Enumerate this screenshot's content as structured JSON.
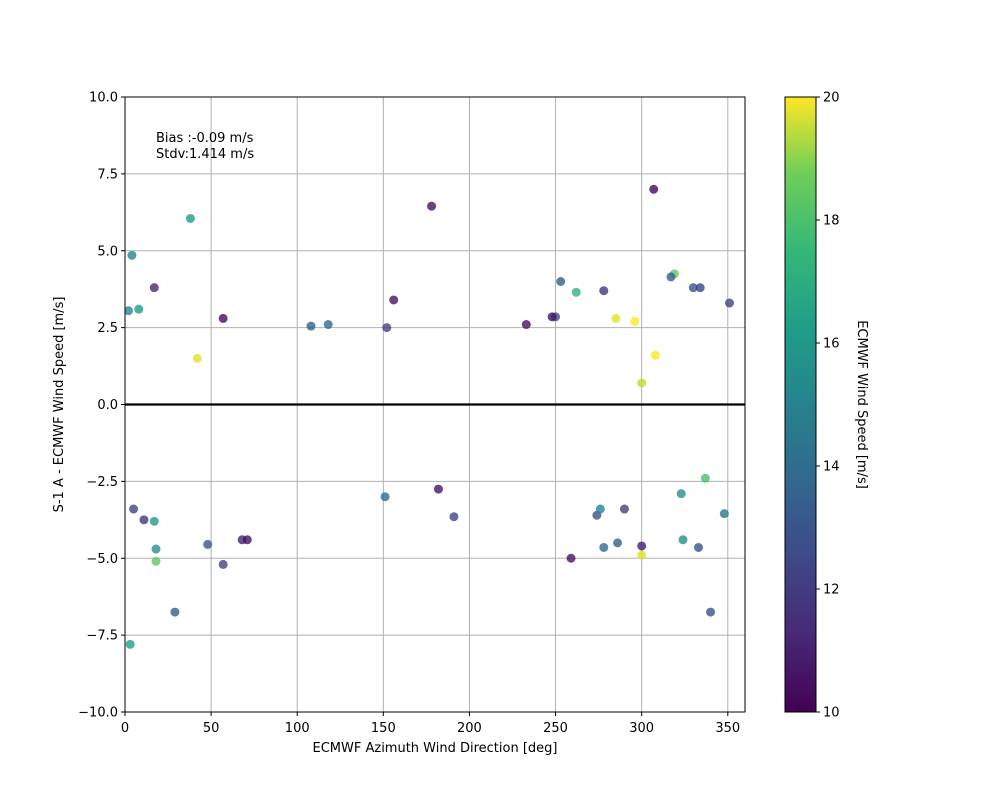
{
  "chart_data": {
    "type": "scatter",
    "xlabel": "ECMWF Azimuth Wind Direction [deg]",
    "ylabel": "S-1 A - ECMWF Wind Speed [m/s]",
    "xlim": [
      0,
      360
    ],
    "ylim": [
      -10,
      10
    ],
    "xticks": [
      0,
      50,
      100,
      150,
      200,
      250,
      300,
      350
    ],
    "yticks": [
      -10.0,
      -7.5,
      -5.0,
      -2.5,
      0.0,
      2.5,
      5.0,
      7.5,
      10.0
    ],
    "ytick_labels": [
      "−10.0",
      "−7.5",
      "−5.0",
      "−2.5",
      "0.0",
      "2.5",
      "5.0",
      "7.5",
      "10.0"
    ],
    "grid": true,
    "reference_line_y": 0,
    "annotations": [
      "Bias :-0.09 m/s",
      "Stdv:1.414 m/s"
    ],
    "colorbar": {
      "label": "ECMWF Wind Speed [m/s]",
      "range": [
        10,
        20
      ],
      "ticks": [
        10,
        12,
        14,
        16,
        18,
        20
      ],
      "colormap": "viridis"
    },
    "points": [
      [
        4,
        4.85,
        14.5
      ],
      [
        38,
        6.05,
        15.5
      ],
      [
        307,
        7.0,
        10.2
      ],
      [
        178,
        6.45,
        10.5
      ],
      [
        3,
        -7.8,
        15.5
      ],
      [
        29,
        -6.75,
        13.0
      ],
      [
        340,
        -6.75,
        12.5
      ],
      [
        18,
        -5.1,
        17.5
      ],
      [
        18,
        -4.7,
        15.0
      ],
      [
        57,
        -5.2,
        12.0
      ],
      [
        259,
        -5.0,
        10.5
      ],
      [
        300,
        -4.9,
        19.5
      ],
      [
        300,
        -4.6,
        10.8
      ],
      [
        286,
        -4.5,
        13.0
      ],
      [
        278,
        -4.65,
        13.5
      ],
      [
        333,
        -4.65,
        12.5
      ],
      [
        324,
        -4.4,
        15.0
      ],
      [
        68,
        -4.4,
        11.0
      ],
      [
        71,
        -4.4,
        10.5
      ],
      [
        48,
        -4.55,
        12.5
      ],
      [
        191,
        -3.65,
        12.0
      ],
      [
        151,
        -3.0,
        13.5
      ],
      [
        182,
        -2.75,
        10.5
      ],
      [
        348,
        -3.55,
        14.0
      ],
      [
        5,
        -3.4,
        12.0
      ],
      [
        11,
        -3.75,
        11.5
      ],
      [
        17,
        -3.8,
        15.5
      ],
      [
        274,
        -3.6,
        12.5
      ],
      [
        276,
        -3.4,
        14.5
      ],
      [
        290,
        -3.4,
        12.0
      ],
      [
        262,
        3.65,
        16.5
      ],
      [
        285,
        2.8,
        19.5
      ],
      [
        296,
        2.7,
        20.0
      ],
      [
        319,
        4.25,
        17.5
      ],
      [
        317,
        4.15,
        13.0
      ],
      [
        330,
        3.8,
        12.5
      ],
      [
        334,
        3.8,
        12.0
      ],
      [
        253,
        4.0,
        13.0
      ],
      [
        278,
        3.7,
        11.5
      ],
      [
        17,
        3.8,
        11.0
      ],
      [
        8,
        3.1,
        15.5
      ],
      [
        2,
        3.05,
        14.5
      ],
      [
        351,
        3.3,
        12.0
      ],
      [
        156,
        3.4,
        10.5
      ],
      [
        57,
        2.8,
        10.3
      ],
      [
        42,
        1.5,
        19.5
      ],
      [
        308,
        1.6,
        20.0
      ],
      [
        300,
        0.7,
        19.0
      ],
      [
        323,
        -2.9,
        15.0
      ],
      [
        337,
        -2.4,
        17.0
      ],
      [
        250,
        2.85,
        12.5
      ],
      [
        248,
        2.85,
        10.5
      ],
      [
        108,
        2.55,
        13.0
      ],
      [
        118,
        2.6,
        13.5
      ],
      [
        152,
        2.5,
        12.0
      ],
      [
        233,
        2.6,
        10.5
      ]
    ]
  }
}
